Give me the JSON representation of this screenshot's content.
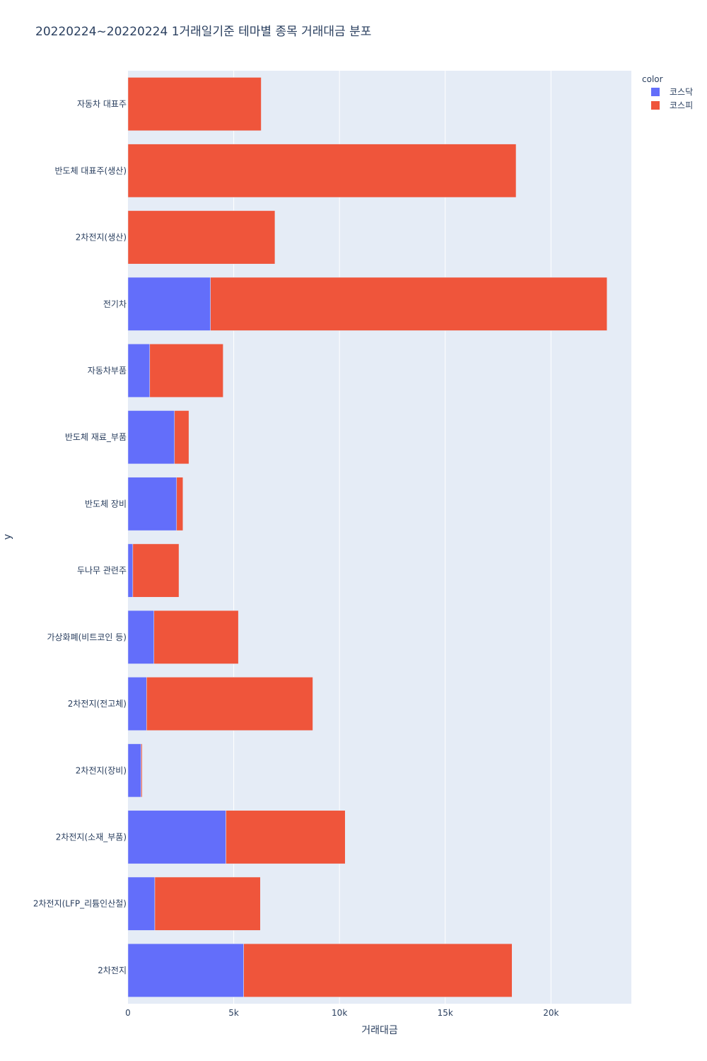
{
  "chart_data": {
    "type": "bar",
    "orientation": "horizontal",
    "barmode": "stack",
    "title": "20220224~20220224 1거래일기준 테마별 종목 거래대금 분포",
    "xlabel": "거래대금",
    "ylabel": "y",
    "xlim": [
      0,
      23800
    ],
    "x_ticks": [
      0,
      5000,
      10000,
      15000,
      20000
    ],
    "x_tick_labels": [
      "0",
      "5k",
      "10k",
      "15k",
      "20k"
    ],
    "grid": true,
    "legend_title": "color",
    "legend_position": "top-right",
    "categories": [
      "자동차 대표주",
      "반도체 대표주(생산)",
      "2차전지(생산)",
      "전기차",
      "자동차부품",
      "반도체 재료_부품",
      "반도체 장비",
      "두나무 관련주",
      "가상화폐(비트코인 등)",
      "2차전지(전고체)",
      "2차전지(장비)",
      "2차전지(소재_부품)",
      "2차전지(LFP_리튬인산철)",
      "2차전지"
    ],
    "series": [
      {
        "name": "코스닥",
        "color": "#636efa",
        "values": [
          0,
          0,
          0,
          3900,
          1030,
          2200,
          2300,
          230,
          1230,
          880,
          620,
          4630,
          1270,
          5470
        ]
      },
      {
        "name": "코스피",
        "color": "#ef553b",
        "values": [
          6300,
          18350,
          6950,
          18750,
          3470,
          680,
          300,
          2180,
          3990,
          7860,
          50,
          5640,
          4990,
          12690
        ]
      }
    ]
  }
}
